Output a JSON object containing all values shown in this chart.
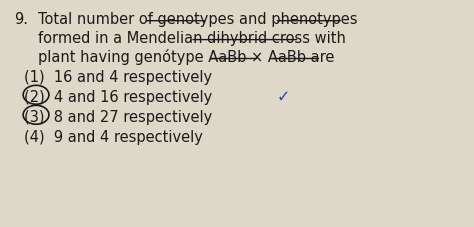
{
  "background_color": "#ddd8c8",
  "question_number": "9.",
  "options": [
    "(1)  16 and 4 respectively",
    "(2)  4 and 16 respectively",
    "(3)  8 and 27 respectively",
    "(4)  9 and 4 respectively"
  ],
  "correct_option": 1,
  "font_size": 10.5,
  "text_color": "#1a1a1a"
}
